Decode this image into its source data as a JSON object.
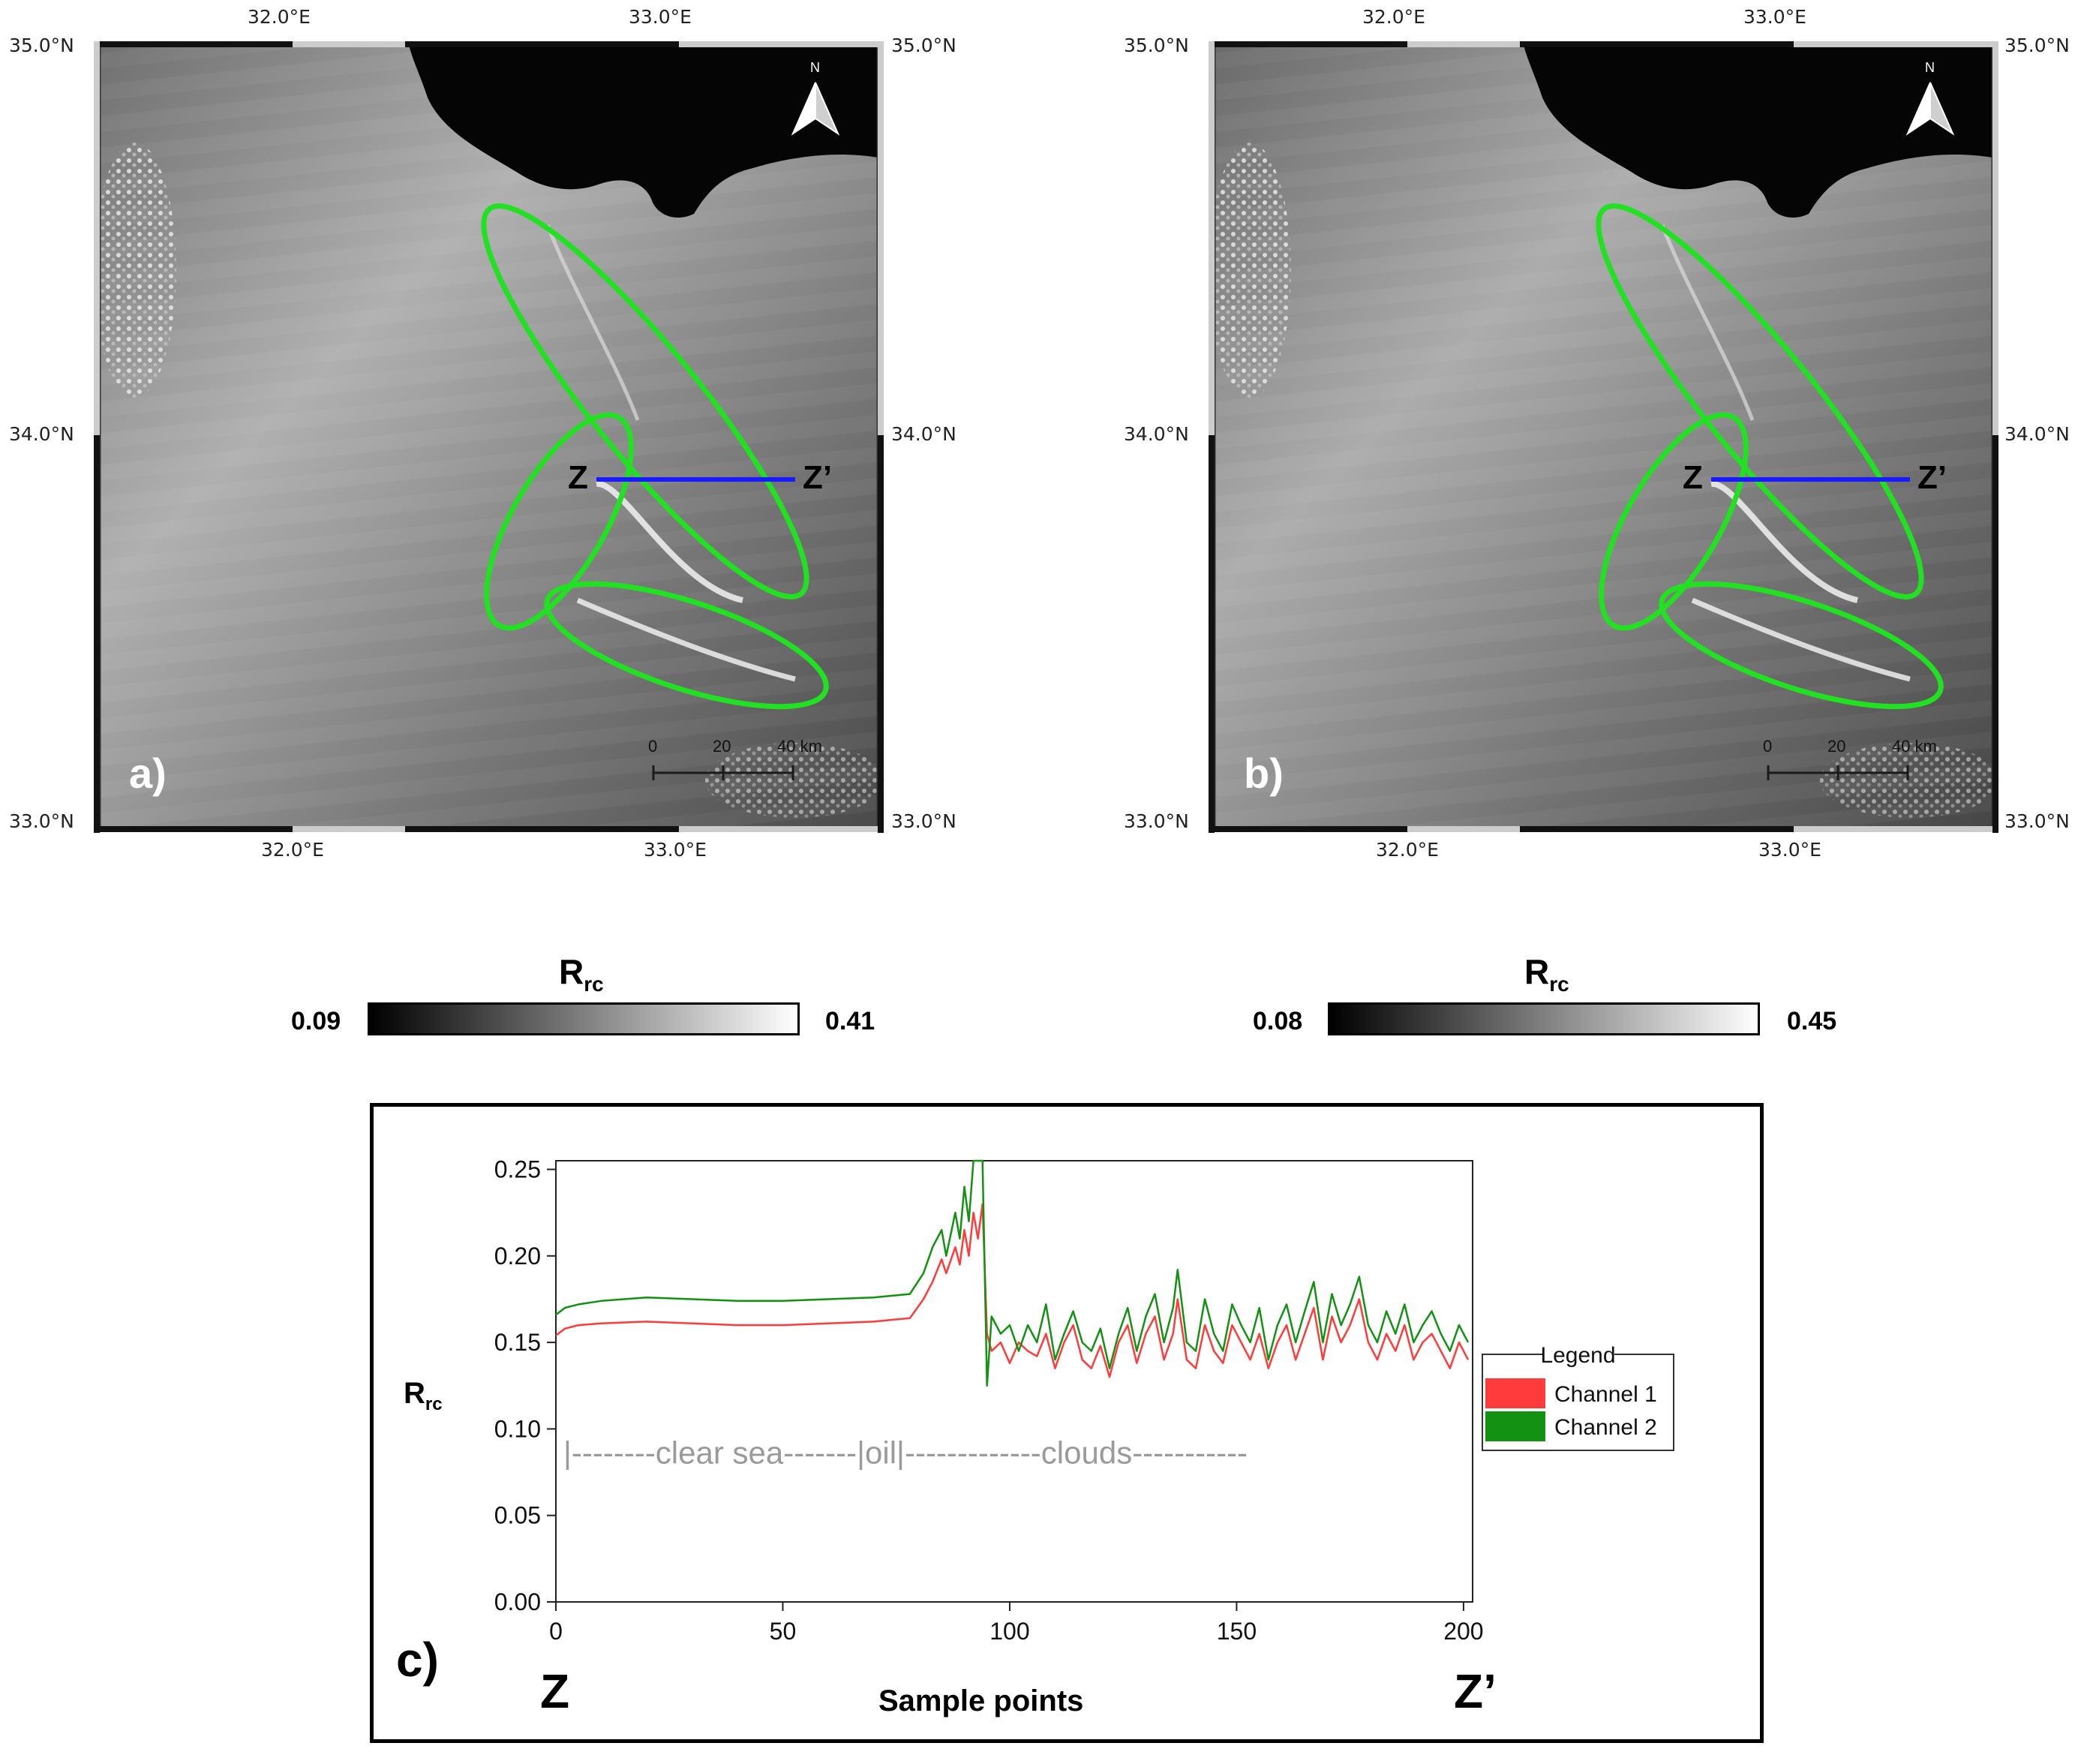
{
  "panels": [
    {
      "id": "a",
      "letter": "a)",
      "lat_labels": [
        "35.0°N",
        "34.0°N",
        "33.0°N"
      ],
      "lon_labels": [
        "32.0°E",
        "33.0°E"
      ],
      "north_label": "N",
      "profile_start": "Z",
      "profile_end": "Z’",
      "scale_ticks": [
        "0",
        "20",
        "40 km"
      ]
    },
    {
      "id": "b",
      "letter": "b)",
      "lat_labels": [
        "35.0°N",
        "34.0°N",
        "33.0°N"
      ],
      "lon_labels": [
        "32.0°E",
        "33.0°E"
      ],
      "north_label": "N",
      "profile_start": "Z",
      "profile_end": "Z’",
      "scale_ticks": [
        "0",
        "20",
        "40 km"
      ]
    }
  ],
  "colorbars": [
    {
      "title_main": "R",
      "title_sub": "rc",
      "min": "0.09",
      "max": "0.41"
    },
    {
      "title_main": "R",
      "title_sub": "rc",
      "min": "0.08",
      "max": "0.45"
    }
  ],
  "colors": {
    "ellipse": "#22e022",
    "profile_line": "#1a1aff",
    "channel1": "#ff3b3b",
    "channel2": "#139113",
    "region_text": "#9a9a9a"
  },
  "chart_data": {
    "type": "line",
    "panel_letter": "c)",
    "xlabel": "Sample points",
    "ylabel_main": "R",
    "ylabel_sub": "rc",
    "x_start_label": "Z",
    "x_end_label": "Z’",
    "xlim": [
      0,
      202
    ],
    "ylim": [
      0,
      0.255
    ],
    "xticks": [
      0,
      50,
      100,
      150,
      200
    ],
    "yticks": [
      "0.00",
      "0.05",
      "0.10",
      "0.15",
      "0.20",
      "0.25"
    ],
    "legend": {
      "title": "Legend",
      "placement": "right"
    },
    "annotation": "|--------clear sea-------|oil|-------------clouds-----------",
    "annotation_y": 0.086,
    "series": [
      {
        "name": "Channel 1",
        "points": [
          [
            0,
            0.154
          ],
          [
            2,
            0.158
          ],
          [
            5,
            0.16
          ],
          [
            10,
            0.161
          ],
          [
            20,
            0.162
          ],
          [
            30,
            0.161
          ],
          [
            40,
            0.16
          ],
          [
            50,
            0.16
          ],
          [
            60,
            0.161
          ],
          [
            70,
            0.162
          ],
          [
            78,
            0.164
          ],
          [
            81,
            0.175
          ],
          [
            83,
            0.185
          ],
          [
            85,
            0.198
          ],
          [
            86,
            0.19
          ],
          [
            88,
            0.205
          ],
          [
            89,
            0.195
          ],
          [
            90,
            0.215
          ],
          [
            91,
            0.2
          ],
          [
            92,
            0.225
          ],
          [
            93,
            0.21
          ],
          [
            94,
            0.23
          ],
          [
            95,
            0.155
          ],
          [
            96,
            0.145
          ],
          [
            98,
            0.15
          ],
          [
            100,
            0.138
          ],
          [
            102,
            0.15
          ],
          [
            104,
            0.145
          ],
          [
            106,
            0.142
          ],
          [
            108,
            0.155
          ],
          [
            110,
            0.135
          ],
          [
            112,
            0.15
          ],
          [
            114,
            0.16
          ],
          [
            116,
            0.14
          ],
          [
            118,
            0.135
          ],
          [
            120,
            0.148
          ],
          [
            122,
            0.13
          ],
          [
            124,
            0.15
          ],
          [
            126,
            0.16
          ],
          [
            128,
            0.138
          ],
          [
            130,
            0.155
          ],
          [
            132,
            0.165
          ],
          [
            134,
            0.14
          ],
          [
            136,
            0.155
          ],
          [
            137,
            0.175
          ],
          [
            139,
            0.14
          ],
          [
            141,
            0.135
          ],
          [
            143,
            0.16
          ],
          [
            145,
            0.145
          ],
          [
            147,
            0.138
          ],
          [
            149,
            0.16
          ],
          [
            151,
            0.15
          ],
          [
            153,
            0.14
          ],
          [
            155,
            0.155
          ],
          [
            157,
            0.135
          ],
          [
            159,
            0.15
          ],
          [
            161,
            0.16
          ],
          [
            163,
            0.14
          ],
          [
            165,
            0.155
          ],
          [
            167,
            0.17
          ],
          [
            169,
            0.14
          ],
          [
            171,
            0.165
          ],
          [
            173,
            0.15
          ],
          [
            175,
            0.16
          ],
          [
            177,
            0.175
          ],
          [
            179,
            0.15
          ],
          [
            181,
            0.14
          ],
          [
            183,
            0.155
          ],
          [
            185,
            0.145
          ],
          [
            187,
            0.16
          ],
          [
            189,
            0.14
          ],
          [
            191,
            0.15
          ],
          [
            193,
            0.155
          ],
          [
            195,
            0.145
          ],
          [
            197,
            0.135
          ],
          [
            199,
            0.15
          ],
          [
            201,
            0.14
          ]
        ]
      },
      {
        "name": "Channel 2",
        "points": [
          [
            0,
            0.166
          ],
          [
            2,
            0.17
          ],
          [
            5,
            0.172
          ],
          [
            10,
            0.174
          ],
          [
            20,
            0.176
          ],
          [
            30,
            0.175
          ],
          [
            40,
            0.174
          ],
          [
            50,
            0.174
          ],
          [
            60,
            0.175
          ],
          [
            70,
            0.176
          ],
          [
            78,
            0.178
          ],
          [
            81,
            0.19
          ],
          [
            83,
            0.205
          ],
          [
            85,
            0.215
          ],
          [
            86,
            0.2
          ],
          [
            88,
            0.225
          ],
          [
            89,
            0.21
          ],
          [
            90,
            0.24
          ],
          [
            91,
            0.22
          ],
          [
            92,
            0.255
          ],
          [
            94,
            0.255
          ],
          [
            95,
            0.125
          ],
          [
            96,
            0.165
          ],
          [
            98,
            0.155
          ],
          [
            100,
            0.16
          ],
          [
            102,
            0.145
          ],
          [
            104,
            0.16
          ],
          [
            106,
            0.15
          ],
          [
            108,
            0.172
          ],
          [
            110,
            0.14
          ],
          [
            112,
            0.155
          ],
          [
            114,
            0.168
          ],
          [
            116,
            0.15
          ],
          [
            118,
            0.145
          ],
          [
            120,
            0.158
          ],
          [
            122,
            0.135
          ],
          [
            124,
            0.155
          ],
          [
            126,
            0.17
          ],
          [
            128,
            0.145
          ],
          [
            130,
            0.165
          ],
          [
            132,
            0.178
          ],
          [
            134,
            0.15
          ],
          [
            136,
            0.17
          ],
          [
            137,
            0.192
          ],
          [
            139,
            0.15
          ],
          [
            141,
            0.145
          ],
          [
            143,
            0.175
          ],
          [
            145,
            0.155
          ],
          [
            147,
            0.145
          ],
          [
            149,
            0.172
          ],
          [
            151,
            0.16
          ],
          [
            153,
            0.15
          ],
          [
            155,
            0.17
          ],
          [
            157,
            0.14
          ],
          [
            159,
            0.16
          ],
          [
            161,
            0.172
          ],
          [
            163,
            0.15
          ],
          [
            165,
            0.168
          ],
          [
            167,
            0.185
          ],
          [
            169,
            0.15
          ],
          [
            171,
            0.178
          ],
          [
            173,
            0.16
          ],
          [
            175,
            0.172
          ],
          [
            177,
            0.188
          ],
          [
            179,
            0.16
          ],
          [
            181,
            0.15
          ],
          [
            183,
            0.168
          ],
          [
            185,
            0.155
          ],
          [
            187,
            0.172
          ],
          [
            189,
            0.15
          ],
          [
            191,
            0.16
          ],
          [
            193,
            0.168
          ],
          [
            195,
            0.155
          ],
          [
            197,
            0.145
          ],
          [
            199,
            0.16
          ],
          [
            201,
            0.15
          ]
        ]
      }
    ]
  }
}
